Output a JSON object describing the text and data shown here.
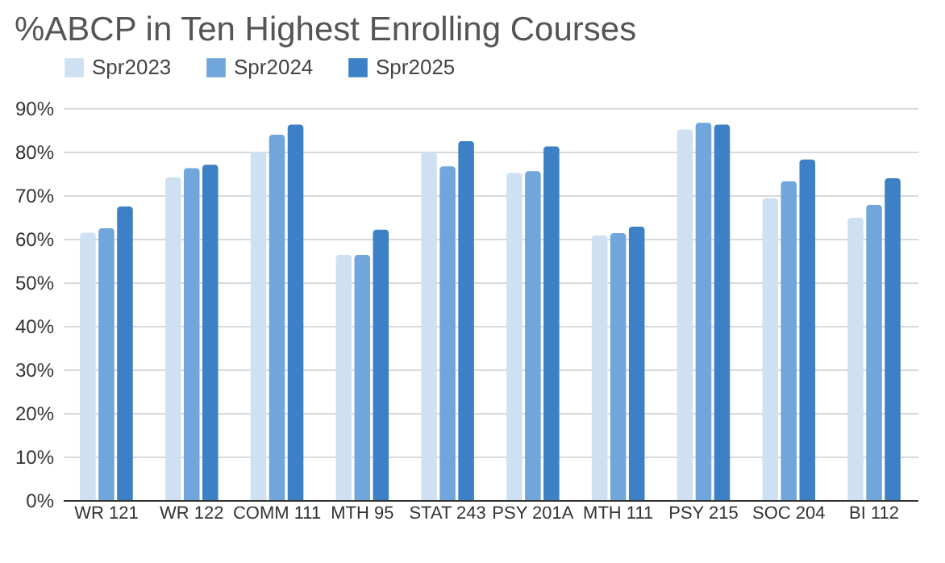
{
  "chart_data": {
    "type": "bar",
    "title": "%ABCP in Ten Highest Enrolling Courses",
    "categories": [
      "WR 121",
      "WR 122",
      "COMM 111",
      "MTH 95",
      "STAT 243",
      "PSY 201A",
      "MTH 111",
      "PSY 215",
      "SOC 204",
      "BI 112"
    ],
    "series": [
      {
        "name": "Spr2023",
        "color": "#cfe0f2",
        "values": [
          61.4,
          74.1,
          80,
          56.3,
          79.8,
          75.1,
          60.8,
          85.1,
          69.3,
          64.8
        ]
      },
      {
        "name": "Spr2024",
        "color": "#70a6dc",
        "values": [
          62.4,
          76.2,
          83.9,
          56.3,
          76.6,
          75.5,
          61.3,
          86.6,
          73.2,
          67.8
        ]
      },
      {
        "name": "Spr2025",
        "color": "#3d80c6",
        "values": [
          67.4,
          77,
          86.2,
          62.1,
          82.4,
          81.2,
          62.8,
          86.2,
          78.2,
          73.9
        ]
      }
    ],
    "ylim": [
      0,
      90
    ],
    "yticks": [
      {
        "value": 0,
        "label": "0%"
      },
      {
        "value": 10,
        "label": "10%"
      },
      {
        "value": 20,
        "label": "20%"
      },
      {
        "value": 30,
        "label": "30%"
      },
      {
        "value": 40,
        "label": "40%"
      },
      {
        "value": 50,
        "label": "50%"
      },
      {
        "value": 60,
        "label": "60%"
      },
      {
        "value": 70,
        "label": "70%"
      },
      {
        "value": 80,
        "label": "80%"
      },
      {
        "value": 90,
        "label": "90%"
      }
    ],
    "grid": "y",
    "legend": "top"
  }
}
